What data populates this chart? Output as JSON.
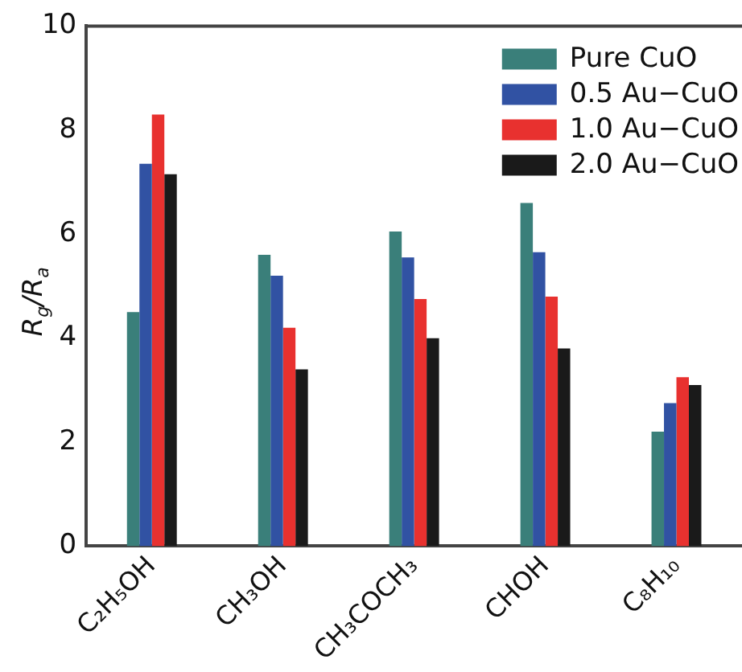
{
  "chart_data": {
    "type": "bar",
    "ylabel": "R$_{g}$/R$_{a}$",
    "categories": [
      "C₂H₅OH",
      "CH₃OH",
      "CH₃COCH₃",
      "CHOH",
      "C₈H₁₀"
    ],
    "series": [
      {
        "name": "Pure CuO",
        "color": "#3a7f7a",
        "values": [
          4.5,
          5.6,
          6.05,
          6.6,
          2.2
        ]
      },
      {
        "name": "0.5 Au−CuO",
        "color": "#3152a3",
        "values": [
          7.35,
          5.2,
          5.55,
          5.65,
          2.75
        ]
      },
      {
        "name": "1.0 Au−CuO",
        "color": "#e8312f",
        "values": [
          8.3,
          4.2,
          4.75,
          4.8,
          3.25
        ]
      },
      {
        "name": "2.0 Au−CuO",
        "color": "#1a1a1a",
        "values": [
          7.15,
          3.4,
          4.0,
          3.8,
          3.1
        ]
      }
    ],
    "ylim": [
      0,
      10
    ],
    "yticks": [
      0,
      2,
      4,
      6,
      8,
      10
    ],
    "grid": false,
    "legend": "top right"
  }
}
